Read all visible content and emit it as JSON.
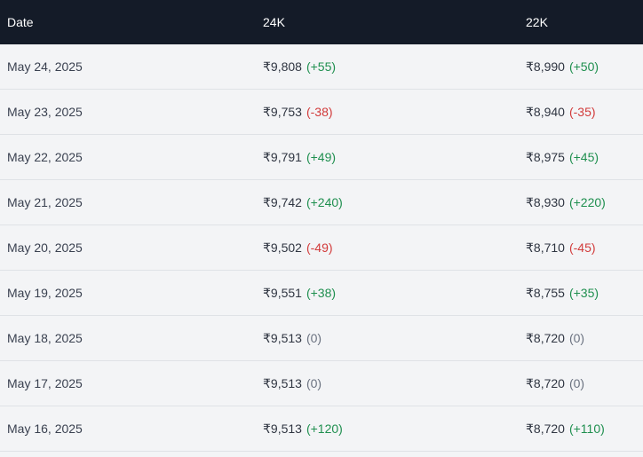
{
  "header": {
    "date": "Date",
    "k24": "24K",
    "k22": "22K"
  },
  "rows": [
    {
      "date": "May 24, 2025",
      "p24": "₹9,808",
      "c24": "(+55)",
      "t24": "up",
      "p22": "₹8,990",
      "c22": "(+50)",
      "t22": "up"
    },
    {
      "date": "May 23, 2025",
      "p24": "₹9,753",
      "c24": "(-38)",
      "t24": "down",
      "p22": "₹8,940",
      "c22": "(-35)",
      "t22": "down"
    },
    {
      "date": "May 22, 2025",
      "p24": "₹9,791",
      "c24": "(+49)",
      "t24": "up",
      "p22": "₹8,975",
      "c22": "(+45)",
      "t22": "up"
    },
    {
      "date": "May 21, 2025",
      "p24": "₹9,742",
      "c24": "(+240)",
      "t24": "up",
      "p22": "₹8,930",
      "c22": "(+220)",
      "t22": "up"
    },
    {
      "date": "May 20, 2025",
      "p24": "₹9,502",
      "c24": "(-49)",
      "t24": "down",
      "p22": "₹8,710",
      "c22": "(-45)",
      "t22": "down"
    },
    {
      "date": "May 19, 2025",
      "p24": "₹9,551",
      "c24": "(+38)",
      "t24": "up",
      "p22": "₹8,755",
      "c22": "(+35)",
      "t22": "up"
    },
    {
      "date": "May 18, 2025",
      "p24": "₹9,513",
      "c24": "(0)",
      "t24": "flat",
      "p22": "₹8,720",
      "c22": "(0)",
      "t22": "flat"
    },
    {
      "date": "May 17, 2025",
      "p24": "₹9,513",
      "c24": "(0)",
      "t24": "flat",
      "p22": "₹8,720",
      "c22": "(0)",
      "t22": "flat"
    },
    {
      "date": "May 16, 2025",
      "p24": "₹9,513",
      "c24": "(+120)",
      "t24": "up",
      "p22": "₹8,720",
      "c22": "(+110)",
      "t22": "up"
    }
  ]
}
